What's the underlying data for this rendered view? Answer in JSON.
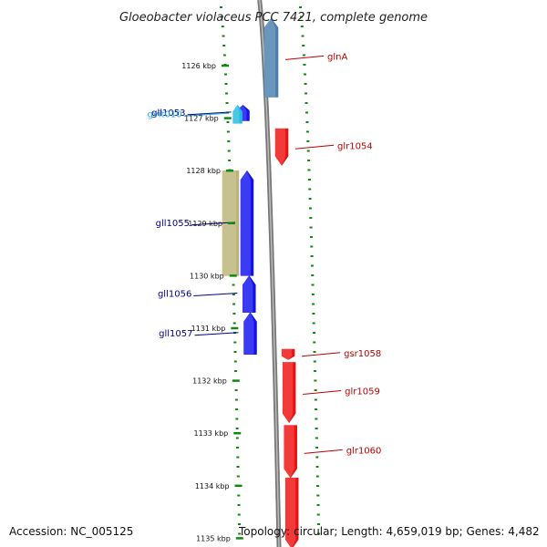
{
  "title": "Gloeobacter violaceus PCC 7421, complete genome",
  "footer": {
    "accession": "Accession: NC_005125",
    "summary": "Topology: circular; Length: 4,659,019 bp; Genes: 4,482"
  },
  "colors": {
    "forward_gene": "#ee1111",
    "reverse_gene": "#1111ee",
    "rna_gene": "#22bbdd",
    "pseudo_gene": "#bbb377",
    "steel_gene": "#4a7fb0",
    "forward_label": "#bb0000",
    "reverse_label": "#00008b",
    "rna_label": "#22aadd",
    "tick": "#118811",
    "backbone": "#888888"
  },
  "axis": {
    "unit": "kbp",
    "ticks": [
      "1126 kbp",
      "1127 kbp",
      "1128 kbp",
      "1129 kbp",
      "1130 kbp",
      "1131 kbp",
      "1132 kbp",
      "1133 kbp",
      "1134 kbp",
      "1135 kbp"
    ],
    "tick_kbp": [
      1126,
      1127,
      1128,
      1129,
      1130,
      1131,
      1132,
      1133,
      1134,
      1135
    ]
  },
  "genes": [
    {
      "label": "glnA",
      "strand": "reverse",
      "start_kbp": 1125.1,
      "end_kbp": 1126.6,
      "color": "steel"
    },
    {
      "label": "gll1053",
      "strand": "reverse",
      "start_kbp": 1126.75,
      "end_kbp": 1127.05,
      "color": "reverse"
    },
    {
      "label": "gvit010",
      "strand": "reverse",
      "start_kbp": 1126.75,
      "end_kbp": 1127.1,
      "color": "rna"
    },
    {
      "label": "glr1054",
      "strand": "forward",
      "start_kbp": 1127.2,
      "end_kbp": 1127.9,
      "color": "forward"
    },
    {
      "label": "",
      "strand": "reverse",
      "start_kbp": 1128.0,
      "end_kbp": 1130.0,
      "color": "pseudo"
    },
    {
      "label": "gll1055",
      "strand": "reverse",
      "start_kbp": 1128.0,
      "end_kbp": 1130.0,
      "color": "reverse"
    },
    {
      "label": "gll1056",
      "strand": "reverse",
      "start_kbp": 1130.0,
      "end_kbp": 1130.7,
      "color": "reverse"
    },
    {
      "label": "gll1057",
      "strand": "reverse",
      "start_kbp": 1130.7,
      "end_kbp": 1131.5,
      "color": "reverse"
    },
    {
      "label": "gsr1058",
      "strand": "forward",
      "start_kbp": 1131.4,
      "end_kbp": 1131.6,
      "color": "forward"
    },
    {
      "label": "glr1059",
      "strand": "forward",
      "start_kbp": 1131.65,
      "end_kbp": 1132.8,
      "color": "forward"
    },
    {
      "label": "glr1060",
      "strand": "forward",
      "start_kbp": 1132.85,
      "end_kbp": 1133.85,
      "color": "forward"
    },
    {
      "label": "",
      "strand": "forward",
      "start_kbp": 1133.85,
      "end_kbp": 1135.2,
      "color": "forward"
    }
  ]
}
